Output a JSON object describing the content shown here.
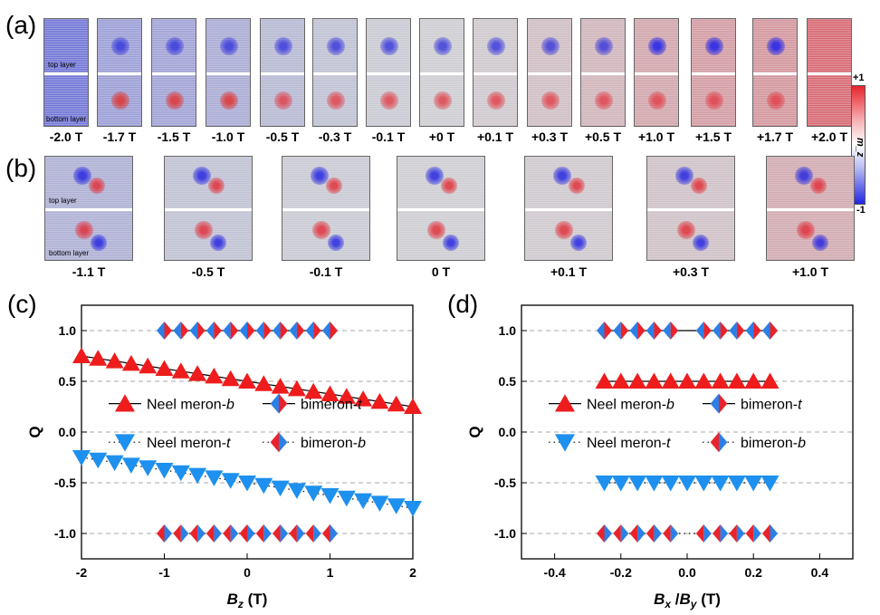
{
  "panel_a": {
    "letter": "(a)",
    "top_layer": "top layer",
    "bottom_layer": "bottom layer",
    "tiles": [
      {
        "label": "-2.0 T",
        "m": -1.0,
        "core": "none"
      },
      {
        "label": "-1.7 T",
        "m": -0.55,
        "core": "red"
      },
      {
        "label": "-1.5 T",
        "m": -0.5,
        "core": "red"
      },
      {
        "label": "-1.0 T",
        "m": -0.4,
        "core": "red"
      },
      {
        "label": "-0.5 T",
        "m": -0.25,
        "core": "both"
      },
      {
        "label": "-0.3 T",
        "m": -0.15,
        "core": "both"
      },
      {
        "label": "-0.1 T",
        "m": -0.05,
        "core": "both"
      },
      {
        "label": "+0 T",
        "m": 0.0,
        "core": "both"
      },
      {
        "label": "+0.1 T",
        "m": 0.05,
        "core": "both"
      },
      {
        "label": "+0.3 T",
        "m": 0.15,
        "core": "both"
      },
      {
        "label": "+0.5 T",
        "m": 0.25,
        "core": "both"
      },
      {
        "label": "+1.0 T",
        "m": 0.4,
        "core": "blue"
      },
      {
        "label": "+1.5 T",
        "m": 0.5,
        "core": "blue"
      },
      {
        "label": "+1.7 T",
        "m": 0.55,
        "core": "blue"
      },
      {
        "label": "+2.0 T",
        "m": 1.0,
        "core": "none"
      }
    ],
    "colorbar": {
      "top": "+1",
      "bottom": "-1",
      "symbol": "m_z"
    }
  },
  "panel_b": {
    "letter": "(b)",
    "top_layer": "top layer",
    "bottom_layer": "bottom layer",
    "tiles": [
      {
        "label": "-1.1 T",
        "m": -0.35
      },
      {
        "label": "-0.5 T",
        "m": -0.15
      },
      {
        "label": "-0.1 T",
        "m": -0.05
      },
      {
        "label": "0 T",
        "m": 0.0
      },
      {
        "label": "+0.1 T",
        "m": 0.05
      },
      {
        "label": "+0.3 T",
        "m": 0.12
      },
      {
        "label": "+1.0 T",
        "m": 0.35
      }
    ]
  },
  "chart_data": [
    {
      "type": "scatter",
      "panel": "(c)",
      "ylabel": "Q",
      "xlabel_symbol": "B",
      "xlabel_sub": "z",
      "xlabel_unit": " (T)",
      "xlim": [
        -2,
        2
      ],
      "ylim": [
        -1.25,
        1.25
      ],
      "xticks": [
        "-2",
        "-1",
        "0",
        "1",
        "2"
      ],
      "xtick_values": [
        -2,
        -1,
        0,
        1,
        2
      ],
      "yticks": [
        "-1.0",
        "-0.5",
        "0.0",
        "0.5",
        "1.0"
      ],
      "ytick_values": [
        -1.0,
        -0.5,
        0.0,
        0.5,
        1.0
      ],
      "grid": "horizontal dashed",
      "legend": {
        "placement": "center",
        "entries": [
          {
            "name": "Neel meron-",
            "suffix": "b"
          },
          {
            "name": "bimeron-",
            "suffix": "t"
          },
          {
            "name": "Neel meron-",
            "suffix": "t"
          },
          {
            "name": "bimeron-",
            "suffix": "b"
          }
        ]
      },
      "series": [
        {
          "marker": "triangle-up",
          "color": "#ee1c1c",
          "line": "solid",
          "x": [
            -2.0,
            -1.8,
            -1.6,
            -1.4,
            -1.2,
            -1.0,
            -0.8,
            -0.6,
            -0.4,
            -0.2,
            0.0,
            0.2,
            0.4,
            0.6,
            0.8,
            1.0,
            1.2,
            1.4,
            1.6,
            1.8,
            2.0
          ],
          "y": [
            0.75,
            0.725,
            0.7,
            0.675,
            0.65,
            0.625,
            0.6,
            0.575,
            0.55,
            0.525,
            0.5,
            0.475,
            0.45,
            0.425,
            0.4,
            0.375,
            0.35,
            0.325,
            0.3,
            0.275,
            0.25
          ]
        },
        {
          "marker": "diamond-split",
          "colors": [
            "#2b7fe6",
            "#e8232b"
          ],
          "line": "solid",
          "x": [
            -1.0,
            -0.8,
            -0.6,
            -0.4,
            -0.2,
            0.0,
            0.2,
            0.4,
            0.6,
            0.8,
            1.0
          ],
          "y": [
            1,
            1,
            1,
            1,
            1,
            1,
            1,
            1,
            1,
            1,
            1
          ]
        },
        {
          "marker": "triangle-down",
          "color": "#1e90ee",
          "line": "dotted",
          "x": [
            -2.0,
            -1.8,
            -1.6,
            -1.4,
            -1.2,
            -1.0,
            -0.8,
            -0.6,
            -0.4,
            -0.2,
            0.0,
            0.2,
            0.4,
            0.6,
            0.8,
            1.0,
            1.2,
            1.4,
            1.6,
            1.8,
            2.0
          ],
          "y": [
            -0.25,
            -0.275,
            -0.3,
            -0.325,
            -0.35,
            -0.375,
            -0.4,
            -0.425,
            -0.45,
            -0.475,
            -0.5,
            -0.525,
            -0.55,
            -0.575,
            -0.6,
            -0.625,
            -0.65,
            -0.675,
            -0.7,
            -0.725,
            -0.75
          ]
        },
        {
          "marker": "diamond-split-rev",
          "colors": [
            "#e8232b",
            "#2b7fe6"
          ],
          "line": "dotted",
          "x": [
            -1.0,
            -0.8,
            -0.6,
            -0.4,
            -0.2,
            0.0,
            0.2,
            0.4,
            0.6,
            0.8,
            1.0
          ],
          "y": [
            -1,
            -1,
            -1,
            -1,
            -1,
            -1,
            -1,
            -1,
            -1,
            -1,
            -1
          ]
        }
      ]
    },
    {
      "type": "scatter",
      "panel": "(d)",
      "ylabel": "Q",
      "xlabel_symbol": "B",
      "xlabel_sub": "x",
      "xlabel_sep": " /",
      "xlabel_symbol2": "B",
      "xlabel_sub2": "y",
      "xlabel_unit": " (T)",
      "xlim": [
        -0.5,
        0.5
      ],
      "ylim": [
        -1.25,
        1.25
      ],
      "xticks": [
        "-0.4",
        "-0.2",
        "0.0",
        "0.2",
        "0.4"
      ],
      "xtick_values": [
        -0.4,
        -0.2,
        0.0,
        0.2,
        0.4
      ],
      "yticks": [
        "-1.0",
        "-0.5",
        "0.0",
        "0.5",
        "1.0"
      ],
      "ytick_values": [
        -1.0,
        -0.5,
        0.0,
        0.5,
        1.0
      ],
      "grid": "horizontal dashed",
      "legend": {
        "placement": "center",
        "entries": [
          {
            "name": "Neel meron-",
            "suffix": "b"
          },
          {
            "name": "bimeron-",
            "suffix": "t"
          },
          {
            "name": "Neel meron-",
            "suffix": "t"
          },
          {
            "name": "bimeron-",
            "suffix": "b"
          }
        ]
      },
      "series": [
        {
          "marker": "triangle-up",
          "color": "#ee1c1c",
          "line": "solid",
          "x": [
            -0.25,
            -0.2,
            -0.15,
            -0.1,
            -0.05,
            0.0,
            0.05,
            0.1,
            0.15,
            0.2,
            0.25
          ],
          "y": [
            0.5,
            0.5,
            0.5,
            0.5,
            0.5,
            0.5,
            0.5,
            0.5,
            0.5,
            0.5,
            0.5
          ]
        },
        {
          "marker": "diamond-split",
          "colors": [
            "#2b7fe6",
            "#e8232b"
          ],
          "line": "solid",
          "x": [
            -0.25,
            -0.2,
            -0.15,
            -0.1,
            -0.05,
            0.05,
            0.1,
            0.15,
            0.2,
            0.25
          ],
          "y": [
            1,
            1,
            1,
            1,
            1,
            1,
            1,
            1,
            1,
            1
          ]
        },
        {
          "marker": "triangle-down",
          "color": "#1e90ee",
          "line": "dotted",
          "x": [
            -0.25,
            -0.2,
            -0.15,
            -0.1,
            -0.05,
            0.0,
            0.05,
            0.1,
            0.15,
            0.2,
            0.25
          ],
          "y": [
            -0.5,
            -0.5,
            -0.5,
            -0.5,
            -0.5,
            -0.5,
            -0.5,
            -0.5,
            -0.5,
            -0.5,
            -0.5
          ]
        },
        {
          "marker": "diamond-split-rev",
          "colors": [
            "#e8232b",
            "#2b7fe6"
          ],
          "line": "dotted",
          "x": [
            -0.25,
            -0.2,
            -0.15,
            -0.1,
            -0.05,
            0.05,
            0.1,
            0.15,
            0.2,
            0.25
          ],
          "y": [
            -1,
            -1,
            -1,
            -1,
            -1,
            -1,
            -1,
            -1,
            -1,
            -1
          ]
        }
      ]
    }
  ]
}
